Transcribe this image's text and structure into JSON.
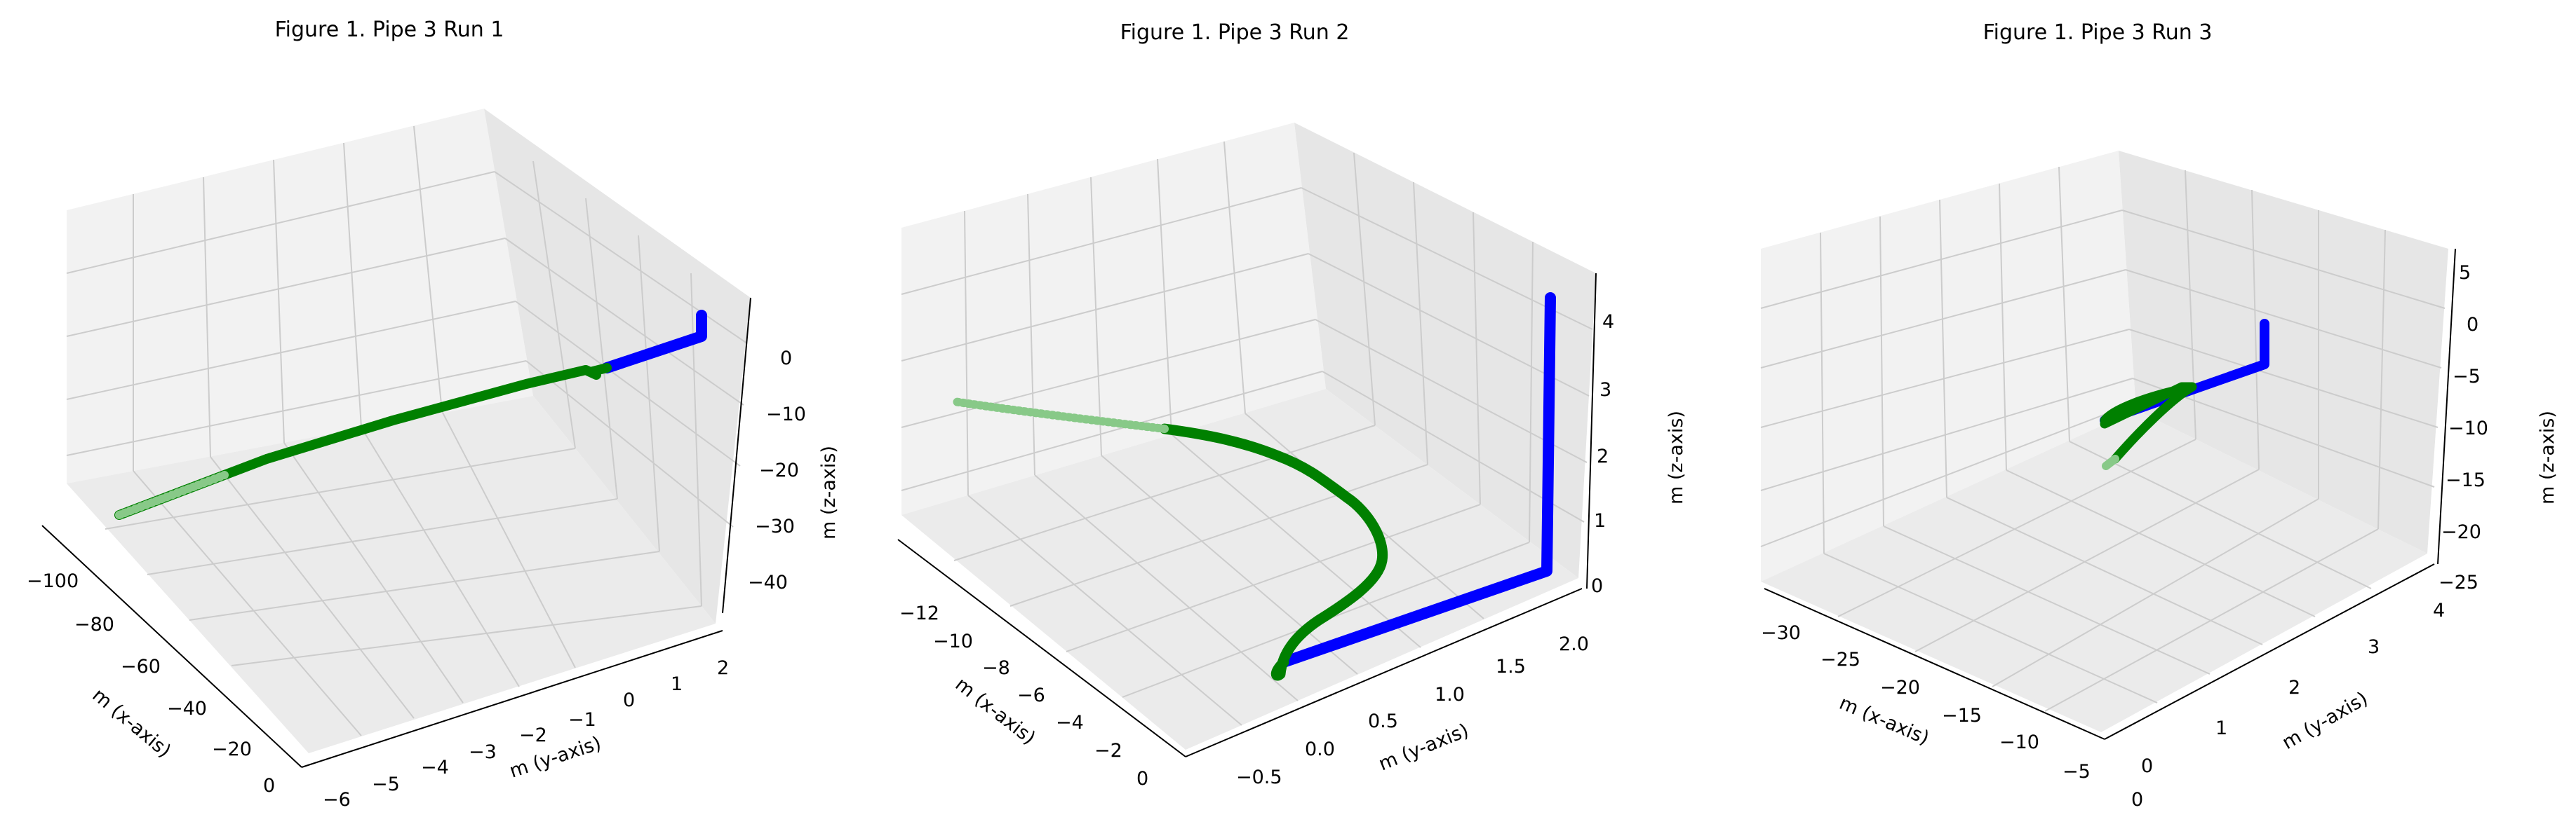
{
  "chart_data": [
    {
      "type": "scatter",
      "projection": "3d",
      "title": "Figure 1. Pipe 3 Run 1",
      "xlabel": "m (x-axis)",
      "ylabel": "m (y-axis)",
      "zlabel": "m (z-axis)",
      "grid": true,
      "series_colors": [
        "#0000ff",
        "#008000"
      ],
      "xticks": [
        "−100",
        "−80",
        "−60",
        "−40",
        "−20",
        "0"
      ],
      "yticks": [
        "−6",
        "−5",
        "−4",
        "−3",
        "−2",
        "−1",
        "0",
        "1",
        "2"
      ],
      "zticks": [
        "0",
        "−10",
        "−20",
        "−30",
        "−40"
      ],
      "series": [
        {
          "color": "#0000ff",
          "x": [
            -2,
            -10
          ],
          "y": [
            1.5,
            1.5
          ],
          "z": [
            0,
            0
          ]
        },
        {
          "color": "#008000",
          "x": [
            -10,
            -98
          ],
          "y": [
            1.5,
            1.5
          ],
          "z": [
            0,
            -40
          ]
        }
      ]
    },
    {
      "type": "scatter",
      "projection": "3d",
      "title": "Figure 1. Pipe 3 Run 2",
      "xlabel": "m (x-axis)",
      "ylabel": "m (y-axis)",
      "zlabel": "m (z-axis)",
      "grid": true,
      "series_colors": [
        "#0000ff",
        "#008000"
      ],
      "xticks": [
        "−12",
        "−10",
        "−8",
        "−6",
        "−4",
        "−2",
        "0"
      ],
      "yticks": [
        "−0.5",
        "0.0",
        "0.5",
        "1.0",
        "1.5",
        "2.0"
      ],
      "zticks": [
        "0",
        "1",
        "2",
        "3",
        "4"
      ],
      "series": [
        {
          "color": "#0000ff",
          "x": [
            0,
            0,
            -8
          ],
          "y": [
            2.0,
            2.0,
            -0.2
          ],
          "z": [
            4.3,
            0.2,
            0.2
          ]
        },
        {
          "color": "#008000",
          "x": [
            -8,
            -12
          ],
          "y": [
            -0.2,
            0
          ],
          "z": [
            0.2,
            2.5
          ]
        }
      ]
    },
    {
      "type": "scatter",
      "projection": "3d",
      "title": "Figure 1. Pipe 3 Run 3",
      "xlabel": "m (x-axis)",
      "ylabel": "m (y-axis)",
      "zlabel": "m (z-axis)",
      "grid": true,
      "series_colors": [
        "#0000ff",
        "#008000"
      ],
      "xticks": [
        "−30",
        "−25",
        "−20",
        "−15",
        "−10",
        "−5",
        "0"
      ],
      "yticks": [
        "0",
        "1",
        "2",
        "3",
        "4"
      ],
      "zticks": [
        "5",
        "0",
        "−5",
        "−10",
        "−15",
        "−20",
        "−25"
      ],
      "series": [
        {
          "color": "#0000ff",
          "x": [
            0,
            0,
            -15
          ],
          "y": [
            2.5,
            2.5,
            2.5
          ],
          "z": [
            0,
            -5,
            -8
          ]
        },
        {
          "color": "#008000",
          "x": [
            -15,
            -20
          ],
          "y": [
            2.5,
            2
          ],
          "z": [
            -8,
            -12
          ]
        }
      ]
    }
  ]
}
